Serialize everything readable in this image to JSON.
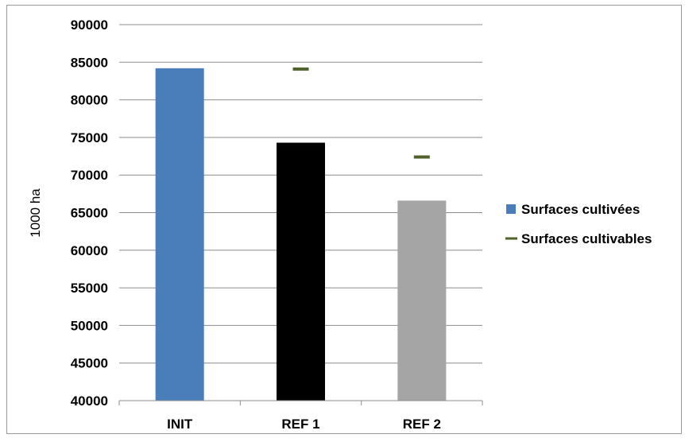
{
  "chart_data": {
    "type": "bar",
    "title": "",
    "xlabel": "",
    "ylabel": "1000 ha",
    "ylim": [
      40000,
      90000
    ],
    "yticks": [
      40000,
      45000,
      50000,
      55000,
      60000,
      65000,
      70000,
      75000,
      80000,
      85000,
      90000
    ],
    "grid": true,
    "legend_position": "right",
    "categories": [
      "INIT",
      "REF 1",
      "REF 2"
    ],
    "series": [
      {
        "name": "Surfaces cultivées",
        "kind": "bar",
        "values": [
          84200,
          74300,
          66600
        ],
        "bar_colors": [
          "#4a7ebb",
          "#000000",
          "#a5a5a5"
        ],
        "legend_color": "#4a7ebb"
      },
      {
        "name": "Surfaces cultivables",
        "kind": "marker",
        "values": [
          null,
          84100,
          72400
        ],
        "color": "#4f6228"
      }
    ]
  }
}
